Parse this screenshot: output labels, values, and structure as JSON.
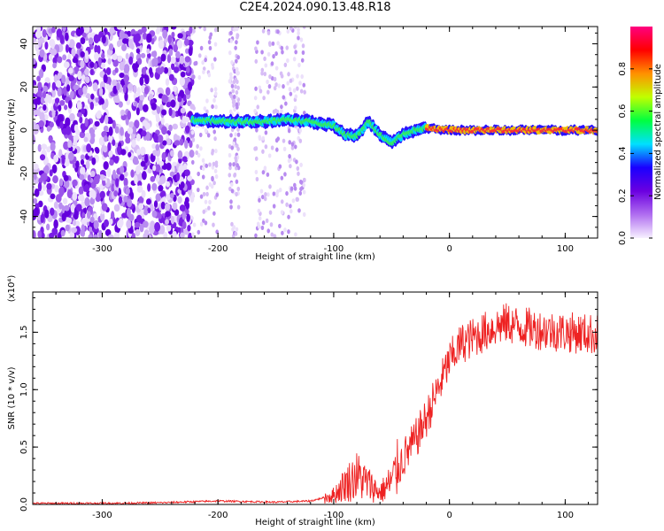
{
  "title": "C2E4.2024.090.13.48.R18",
  "chart_data": [
    {
      "type": "heatmap",
      "xlabel": "Height of straight line (km)",
      "ylabel": "Frequency (Hz)",
      "xlim": [
        -360,
        128
      ],
      "ylim": [
        -50,
        48
      ],
      "x_ticks": [
        "-300",
        "-200",
        "-100",
        "0",
        "100"
      ],
      "y_ticks": [
        "-40",
        "-20",
        "0",
        "20",
        "40"
      ],
      "colorbar": {
        "label": "Normalized spectral amplitude",
        "range": [
          0,
          1
        ],
        "ticks": [
          "0.0",
          "0.2",
          "0.4",
          "0.6",
          "0.8"
        ],
        "colormap": [
          "#f7f0ff",
          "#b06ef0",
          "#6b00e0",
          "#1a00ff",
          "#00e0ff",
          "#00ff40",
          "#c0ff00",
          "#ff9000",
          "#ff0000",
          "#ff0080"
        ]
      },
      "noise_region_x": [
        -360,
        -222
      ],
      "broken_noise_x": [
        -222,
        -125
      ],
      "signal_track": [
        {
          "x": -222,
          "y": 5
        },
        {
          "x": -200,
          "y": 4
        },
        {
          "x": -180,
          "y": 4
        },
        {
          "x": -160,
          "y": 4
        },
        {
          "x": -140,
          "y": 5
        },
        {
          "x": -120,
          "y": 4
        },
        {
          "x": -100,
          "y": 2
        },
        {
          "x": -90,
          "y": -2
        },
        {
          "x": -80,
          "y": -3
        },
        {
          "x": -70,
          "y": 4
        },
        {
          "x": -60,
          "y": -2
        },
        {
          "x": -50,
          "y": -6
        },
        {
          "x": -40,
          "y": -2
        },
        {
          "x": -30,
          "y": 0
        },
        {
          "x": -20,
          "y": 1
        },
        {
          "x": 0,
          "y": 0
        },
        {
          "x": 50,
          "y": 0
        },
        {
          "x": 100,
          "y": 0
        },
        {
          "x": 128,
          "y": 0
        }
      ]
    },
    {
      "type": "line",
      "xlabel": "Height of straight line (km)",
      "ylabel": "SNR (10 * v/v)",
      "multiplier_label": "(x10⁴)",
      "xlim": [
        -360,
        128
      ],
      "ylim": [
        0,
        1.85
      ],
      "x_ticks": [
        "-300",
        "-200",
        "-100",
        "0",
        "100"
      ],
      "y_ticks": [
        "0.0",
        "0.5",
        "1.0",
        "1.5"
      ],
      "color": "#ee2222",
      "x": [
        -360,
        -300,
        -250,
        -200,
        -150,
        -120,
        -100,
        -90,
        -80,
        -70,
        -60,
        -50,
        -40,
        -30,
        -20,
        -10,
        0,
        10,
        20,
        30,
        40,
        50,
        60,
        80,
        100,
        128
      ],
      "y": [
        0.01,
        0.01,
        0.015,
        0.03,
        0.02,
        0.03,
        0.08,
        0.18,
        0.25,
        0.18,
        0.1,
        0.2,
        0.4,
        0.55,
        0.75,
        1.0,
        1.25,
        1.4,
        1.45,
        1.5,
        1.55,
        1.58,
        1.55,
        1.52,
        1.5,
        1.48
      ]
    }
  ]
}
